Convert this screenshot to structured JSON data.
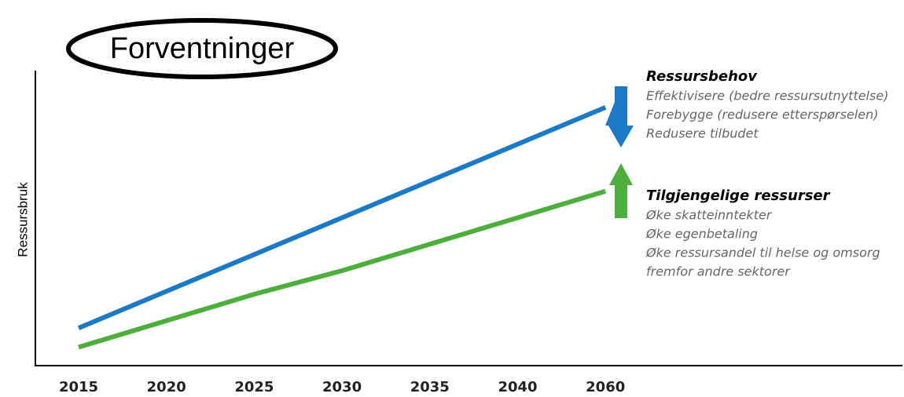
{
  "chart_data": {
    "type": "line",
    "title": "Forventninger",
    "y_label": "Ressursbruk",
    "categories": [
      "2015",
      "2020",
      "2025",
      "2030",
      "2035",
      "2040",
      "2060"
    ],
    "ylim": [
      0,
      100
    ],
    "series": [
      {
        "name": "Ressursbehov",
        "color": "#1a7ac8",
        "values": [
          12.5,
          25,
          37.5,
          50,
          62.5,
          75,
          87.5
        ]
      },
      {
        "name": "Tilgjengelige ressurser",
        "color": "#4caf3c",
        "values": [
          6,
          15,
          24,
          32,
          41,
          50,
          59
        ]
      }
    ],
    "annotations": [
      {
        "heading": "Ressursbehov",
        "lines": [
          "Effektivisere (bedre ressursutnyttelse)",
          "Forebygge (redusere etterspørselen)",
          "Redusere tilbudet"
        ]
      },
      {
        "heading": "Tilgjengelige ressurser",
        "lines": [
          "Øke skatteinntekter",
          "Øke egenbetaling",
          "Øke ressursandel til helse og omsorg",
          "fremfor andre sektorer"
        ]
      }
    ]
  }
}
